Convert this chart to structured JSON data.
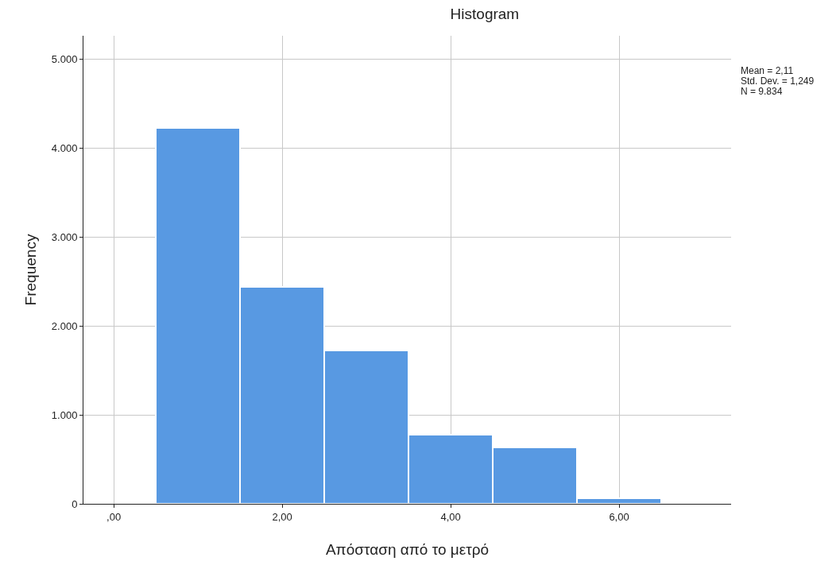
{
  "chart_data": {
    "type": "histogram",
    "title": "Histogram",
    "xlabel": "Απόσταση από το μετρό",
    "ylabel": "Frequency",
    "bins": [
      0.5,
      1.5,
      2.5,
      3.5,
      4.5,
      5.5,
      6.5
    ],
    "values": [
      4220,
      2440,
      1720,
      780,
      630,
      60
    ],
    "color": "#5899e2",
    "xlim": [
      -0.36,
      7.33
    ],
    "ylim": [
      0,
      5260
    ],
    "xticks": [
      {
        "value": 0,
        "label": ",00"
      },
      {
        "value": 2,
        "label": "2,00"
      },
      {
        "value": 4,
        "label": "4,00"
      },
      {
        "value": 6,
        "label": "6,00"
      }
    ],
    "yticks": [
      0,
      {
        "value": 1000,
        "label": "1.000"
      },
      {
        "value": 2000,
        "label": "2.000"
      },
      {
        "value": 3000,
        "label": "3.000"
      },
      {
        "value": 4000,
        "label": "4.000"
      },
      {
        "value": 5000,
        "label": "5.000"
      }
    ],
    "grid": true,
    "annotations": [
      "Mean = 2,11",
      "Std. Dev. = 1,249",
      "N = 9.834"
    ]
  }
}
